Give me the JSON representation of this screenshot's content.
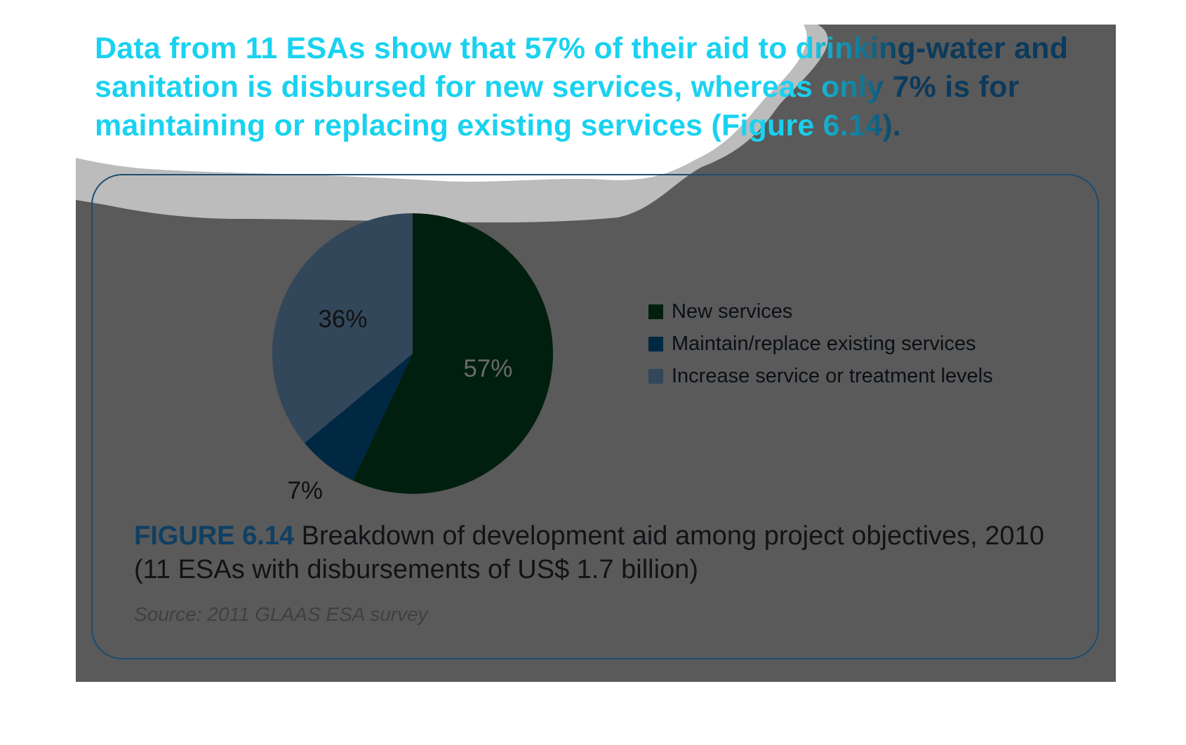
{
  "headline": "Data from 11 ESAs show that 57% of their aid to drinking-water and sanitation is disbursed for new services, whereas only 7% is for maintaining or replacing existing services (Figure 6.14).",
  "figure": {
    "number": "FIGURE 6.14",
    "caption_text": " Breakdown of development aid among project objectives, 2010 (11 ESAs with disbursements of US$ 1.7 billion)",
    "source": "Source: 2011 GLAAS ESA survey"
  },
  "colors": {
    "panel_background": "#5a5a5a",
    "headline_highlight": "#19d2f0",
    "headline_shadow": "#0c3a5c",
    "box_border": "#1a4d73"
  },
  "chart_data": {
    "type": "pie",
    "categories": [
      "New services",
      "Maintain/replace existing services",
      "Increase service or treatment levels"
    ],
    "values": [
      57,
      7,
      36
    ],
    "slice_labels": [
      "57%",
      "7%",
      "36%"
    ],
    "colors": [
      "#001f0f",
      "#002843",
      "#33475a"
    ],
    "label_colors": [
      "#6b6b6b",
      "#111111",
      "#111111"
    ],
    "start": "12 o'clock",
    "direction": "clockwise",
    "legend": {
      "placement": "right",
      "entries": [
        "New services",
        "Maintain/replace existing services",
        "Increase service or treatment levels"
      ]
    }
  }
}
